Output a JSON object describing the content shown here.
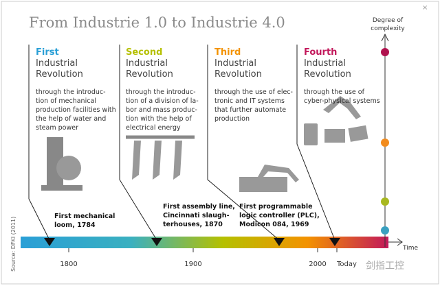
{
  "title": "From Industrie 1.0 to Industrie 4.0",
  "complexity_label": [
    "Degree of",
    "complexity"
  ],
  "time_label": "Time",
  "source": "Source: DFKI (2011)",
  "timeline_labels": [
    "1800",
    "1900",
    "2000",
    "Today"
  ],
  "revolutions": [
    {
      "ordinal": "First",
      "name": [
        "Industrial",
        "Revolution"
      ],
      "description": [
        "through the introduc-",
        "tion of mechanical",
        "production facilities with",
        "the help of water and",
        "steam power"
      ],
      "milestone": [
        "First mechanical",
        "loom, 1784"
      ]
    },
    {
      "ordinal": "Second",
      "name": [
        "Industrial",
        "Revolution"
      ],
      "description": [
        "through the introduc-",
        "tion of a division of la-",
        "bor and mass produc-",
        "tion with the help of",
        "electrical energy"
      ],
      "milestone": [
        "First assembly line,",
        "Cincinnati slaugh-",
        "terhouses, 1870"
      ]
    },
    {
      "ordinal": "Third",
      "name": [
        "Industrial",
        "Revolution"
      ],
      "description": [
        "through the use of elec-",
        "tronic and IT systems",
        "that further automate",
        "production"
      ],
      "milestone": [
        "First programmable",
        "logic controller (PLC),",
        "Modicon 084, 1969"
      ]
    },
    {
      "ordinal": "Fourth",
      "name": [
        "Industrial",
        "Revolution"
      ],
      "description": [
        "through the use of",
        "cyber-physical systems"
      ]
    }
  ],
  "watermark": "剑指工控"
}
